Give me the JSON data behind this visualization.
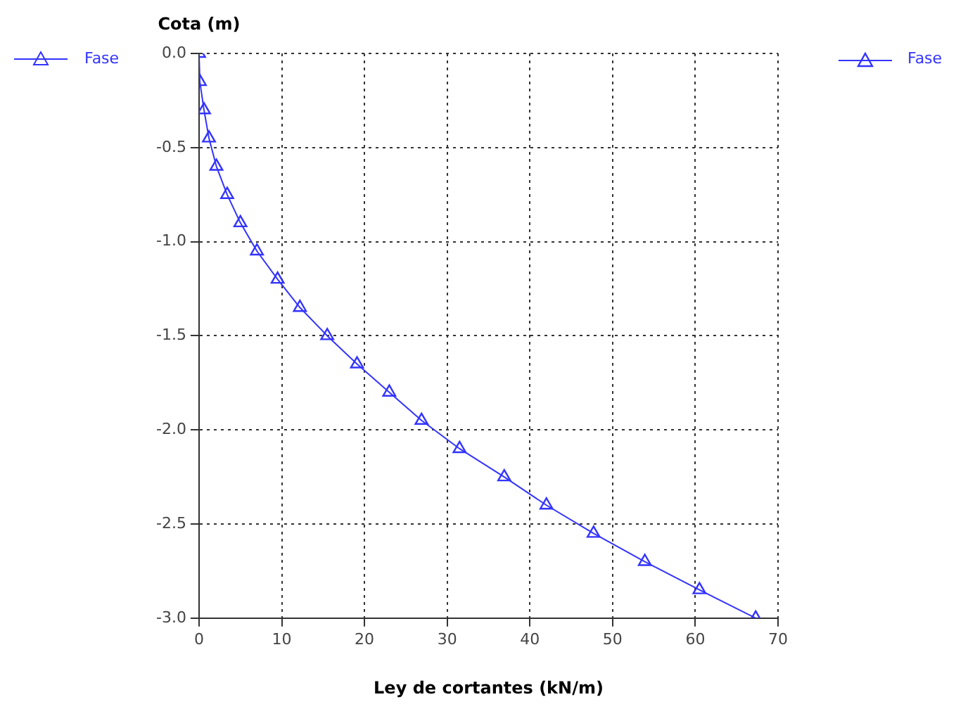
{
  "chart_data": {
    "type": "line",
    "xlabel": "Ley de cortantes (kN/m)",
    "ylabel": "Cota (m)",
    "series": [
      {
        "name": "Fase",
        "color": "#3333ff",
        "x": [
          0,
          0.1,
          0.6,
          1.2,
          2.1,
          3.4,
          5.0,
          7.0,
          9.5,
          12.2,
          15.5,
          19.1,
          23.0,
          26.9,
          31.5,
          36.9,
          42.0,
          47.7,
          53.9,
          60.5,
          67.3
        ],
        "values": [
          0,
          -0.15,
          -0.3,
          -0.45,
          -0.6,
          -0.75,
          -0.9,
          -1.05,
          -1.2,
          -1.35,
          -1.5,
          -1.65,
          -1.8,
          -1.95,
          -2.1,
          -2.25,
          -2.4,
          -2.55,
          -2.7,
          -2.85,
          -3.0
        ]
      }
    ],
    "xlim": [
      0,
      70
    ],
    "xticks": [
      0,
      10,
      20,
      30,
      40,
      50,
      60,
      70
    ],
    "ylim": [
      -3,
      0
    ],
    "yticks": [
      {
        "value": 0,
        "label": "0.0"
      },
      {
        "value": -0.5,
        "label": "-0.5"
      },
      {
        "value": -1,
        "label": "-1.0"
      },
      {
        "value": -1.5,
        "label": "-1.5"
      },
      {
        "value": -2,
        "label": "-2.0"
      },
      {
        "value": -2.5,
        "label": "-2.5"
      },
      {
        "value": -3,
        "label": "-3.0"
      }
    ],
    "grid": true,
    "legend": "top",
    "marker": "triangle",
    "line_style": "solid"
  }
}
